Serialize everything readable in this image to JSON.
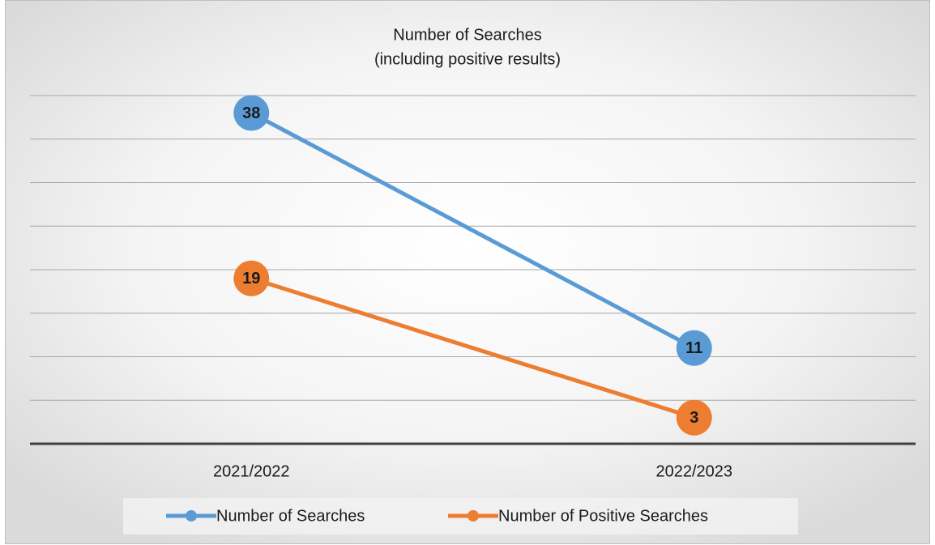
{
  "chart_data": {
    "type": "line",
    "title": "Number of Searches",
    "subtitle": "(including positive results)",
    "categories": [
      "2021/2022",
      "2022/2023"
    ],
    "series": [
      {
        "name": "Number of Searches",
        "color": "#5b9bd5",
        "values": [
          38,
          11
        ]
      },
      {
        "name": "Number of Positive Searches",
        "color": "#ed7d31",
        "values": [
          19,
          3
        ]
      }
    ],
    "ylim": [
      0,
      40
    ],
    "yticks": [
      0,
      5,
      10,
      15,
      20,
      25,
      30,
      35,
      40
    ],
    "grid": true,
    "legend": "bottom"
  }
}
